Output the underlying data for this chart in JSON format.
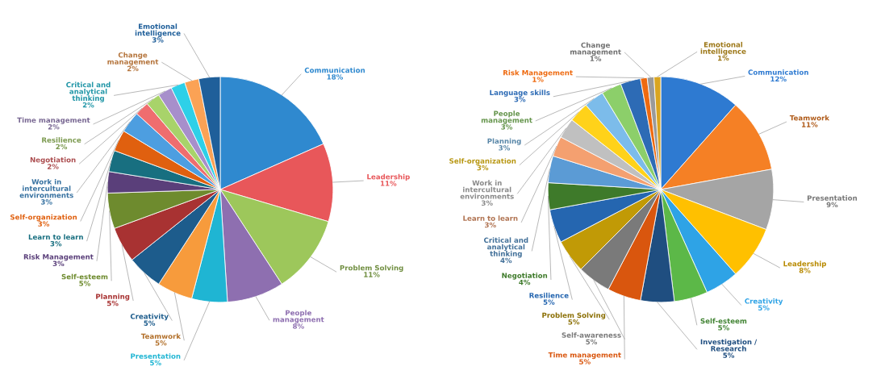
{
  "chart_data": [
    {
      "type": "pie",
      "categories": [
        "Communication",
        "Leadership",
        "Problem Solving",
        "People management",
        "Presentation",
        "Teamwork",
        "Creativity",
        "Planning",
        "Self-esteem",
        "Risk Management",
        "Learn to learn",
        "Self-organization",
        "Work in intercultural environments",
        "Negotiation",
        "Resilience",
        "Time management",
        "Critical and analytical thinking",
        "Change management",
        "Emotional intelligence"
      ],
      "values": [
        18,
        11,
        11,
        8,
        5,
        5,
        5,
        5,
        5,
        3,
        3,
        3,
        3,
        2,
        2,
        2,
        2,
        2,
        3
      ],
      "value_labels": [
        "18%",
        "11%",
        "11%",
        "8%",
        "5%",
        "5%",
        "5%",
        "5%",
        "5%",
        "3%",
        "3%",
        "3%",
        "3%",
        "2%",
        "2%",
        "2%",
        "2%",
        "2%",
        "3%"
      ],
      "colors": [
        "#2f89cf",
        "#e8575a",
        "#9dc75b",
        "#8e6fb0",
        "#1fb5d3",
        "#f79b3c",
        "#1d5c8c",
        "#a83232",
        "#6e8b2e",
        "#5a3f7a",
        "#186f80",
        "#e0600f",
        "#4d9ee0",
        "#ef6d6f",
        "#a8d36a",
        "#a78fcb",
        "#2ed0e8",
        "#fba255",
        "#1f5f9a"
      ]
    },
    {
      "type": "pie",
      "categories": [
        "Communication",
        "Teamwork",
        "Presentation",
        "Leadership",
        "Creativity",
        "Self-esteem",
        "Investigation / Research",
        "Time management",
        "Self-awareness",
        "Problem Solving",
        "Resilience",
        "Negotiation",
        "Critical and analytical thinking",
        "Learn to learn",
        "Work in intercultural environments",
        "Self-organization",
        "Planning",
        "People management",
        "Language skills",
        "Risk Management",
        "Change management",
        "Emotional intelligence"
      ],
      "values": [
        12,
        11,
        9,
        8,
        5,
        5,
        5,
        5,
        5,
        5,
        5,
        4,
        4,
        3,
        3,
        3,
        3,
        3,
        3,
        1,
        1,
        1
      ],
      "value_labels": [
        "12%",
        "11%",
        "9%",
        "8%",
        "5%",
        "5%",
        "5%",
        "5%",
        "5%",
        "5%",
        "5%",
        "4%",
        "4%",
        "3%",
        "3%",
        "3%",
        "3%",
        "3%",
        "3%",
        "1%",
        "1%",
        "1%"
      ],
      "colors": [
        "#2e7ad1",
        "#f58025",
        "#a5a5a5",
        "#ffc000",
        "#2ea3e6",
        "#5cb848",
        "#1f4e80",
        "#d9560e",
        "#7a7a7a",
        "#c19a06",
        "#2566b0",
        "#3e7a2a",
        "#5b9bd5",
        "#f4a070",
        "#c0c0c0",
        "#ffd21a",
        "#7cbcea",
        "#8ccf6a",
        "#2d6bb5",
        "#ee6a10",
        "#9a9a9a",
        "#d9a520"
      ]
    }
  ]
}
